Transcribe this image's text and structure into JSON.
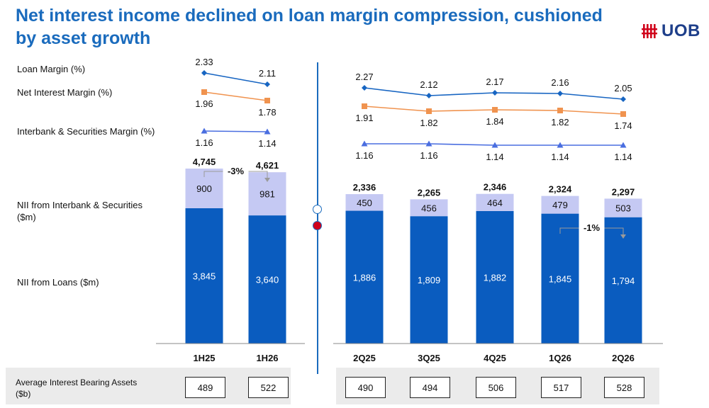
{
  "header": {
    "title": "Net interest income declined on loan margin compression, cushioned by asset growth",
    "logo_text": "UOB",
    "logo_icon": "uob-bars-icon"
  },
  "labels": {
    "loan_margin": "Loan Margin (%)",
    "nim": "Net Interest Margin (%)",
    "interbank_margin": "Interbank & Securities Margin (%)",
    "nii_interbank": "NII from Interbank & Securities ($m)",
    "nii_loans": "NII from Loans ($m)",
    "avg_assets": "Average Interest Bearing Assets ($b)"
  },
  "colors": {
    "title": "#1a6bbd",
    "loans_bar": "#0a5cbf",
    "interbank_bar": "#c5c9f3",
    "loan_margin_line": "#1765c2",
    "nim_line": "#f0934f",
    "interbank_line": "#4a6ee0",
    "band": "#ebebeb"
  },
  "chart_data": [
    {
      "type": "bar",
      "categories": [
        "1H25",
        "1H26"
      ],
      "stacked": true,
      "series": [
        {
          "name": "NII from Loans ($m)",
          "values": [
            "3,845",
            "3,640"
          ]
        },
        {
          "name": "NII from Interbank & Securities ($m)",
          "values": [
            "900",
            "981"
          ]
        }
      ],
      "totals": [
        "4,745",
        "4,621"
      ],
      "change_annotation": "-3%",
      "lines": [
        {
          "name": "Loan Margin (%)",
          "values": [
            2.33,
            2.11
          ]
        },
        {
          "name": "Net Interest Margin (%)",
          "values": [
            1.96,
            1.78
          ]
        },
        {
          "name": "Interbank & Securities Margin (%)",
          "values": [
            1.16,
            1.14
          ]
        }
      ],
      "average_interest_bearing_assets": [
        "489",
        "522"
      ]
    },
    {
      "type": "bar",
      "categories": [
        "2Q25",
        "3Q25",
        "4Q25",
        "1Q26",
        "2Q26"
      ],
      "stacked": true,
      "series": [
        {
          "name": "NII from Loans ($m)",
          "values": [
            "1,886",
            "1,809",
            "1,882",
            "1,845",
            "1,794"
          ]
        },
        {
          "name": "NII from Interbank & Securities ($m)",
          "values": [
            "450",
            "456",
            "464",
            "479",
            "503"
          ]
        }
      ],
      "totals": [
        "2,336",
        "2,265",
        "2,346",
        "2,324",
        "2,297"
      ],
      "change_annotation": "-1%",
      "lines": [
        {
          "name": "Loan Margin (%)",
          "values": [
            2.27,
            2.12,
            2.17,
            2.16,
            2.05
          ]
        },
        {
          "name": "Net Interest Margin (%)",
          "values": [
            1.91,
            1.82,
            1.84,
            1.82,
            1.74
          ]
        },
        {
          "name": "Interbank & Securities Margin (%)",
          "values": [
            1.16,
            1.16,
            1.14,
            1.14,
            1.14
          ]
        }
      ],
      "average_interest_bearing_assets": [
        "490",
        "494",
        "506",
        "517",
        "528"
      ]
    }
  ]
}
